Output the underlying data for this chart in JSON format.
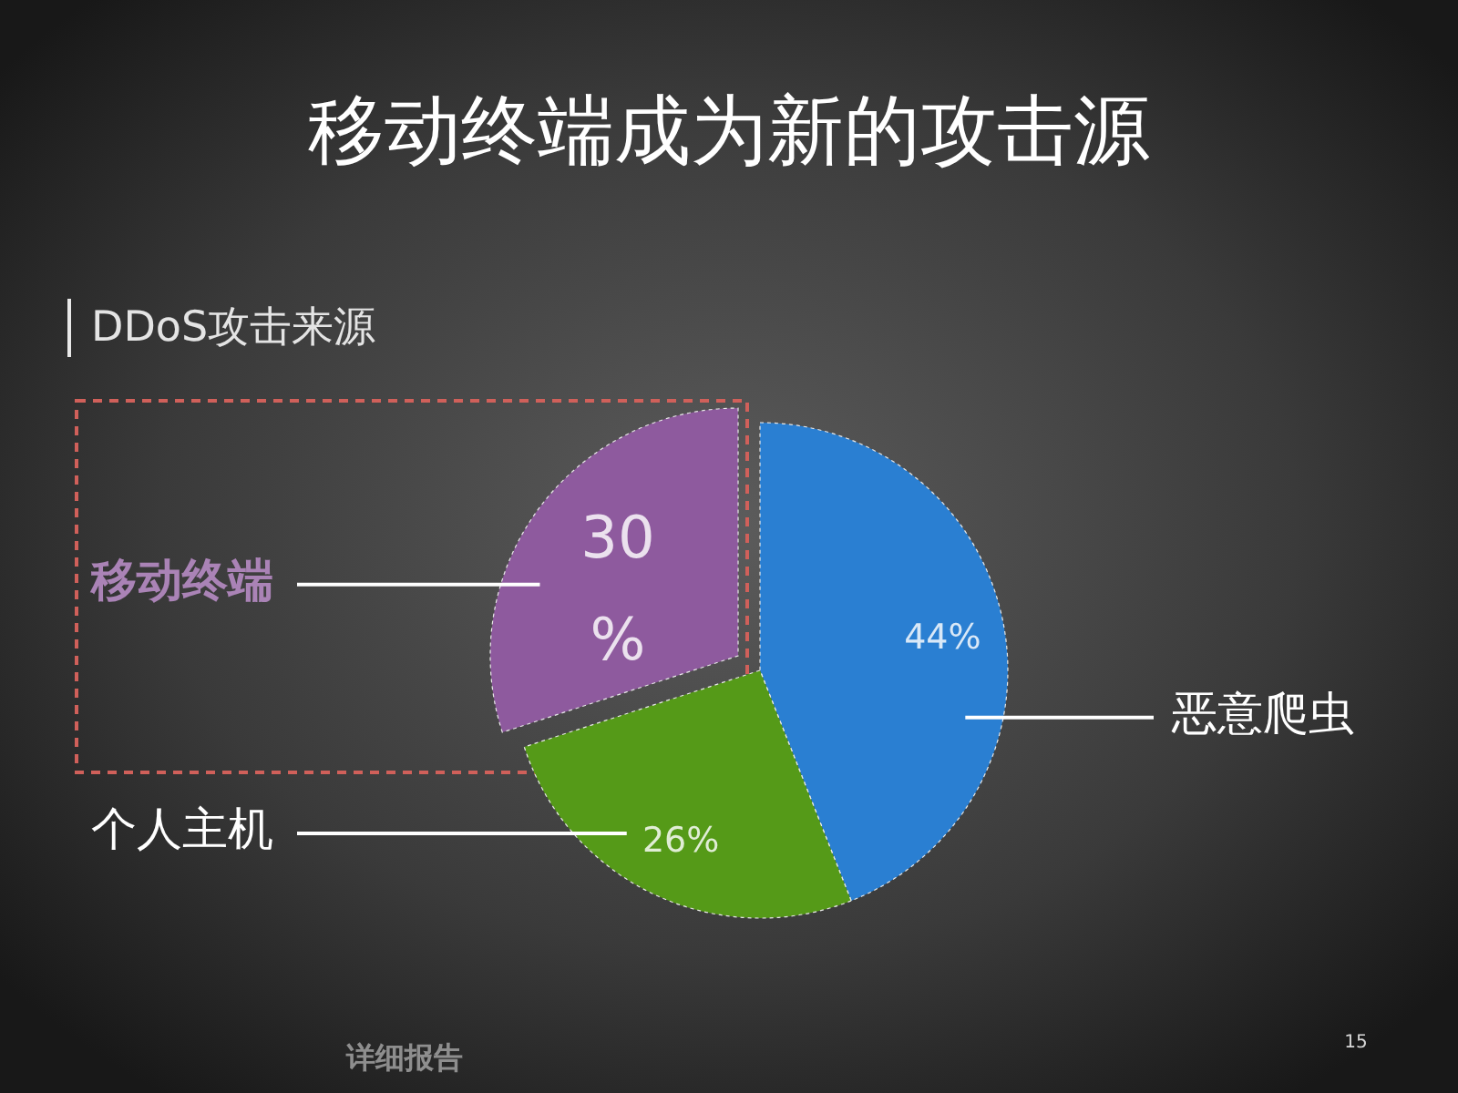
{
  "chart_data": {
    "type": "pie",
    "title": "移动终端成为新的攻击源",
    "subtitle": "DDoS攻击来源",
    "categories": [
      "恶意爬虫",
      "个人主机",
      "移动终端"
    ],
    "values": [
      44,
      26,
      30
    ],
    "colors": [
      "#2a7fd2",
      "#559a18",
      "#8e5a9e"
    ],
    "value_labels": [
      "44%",
      "26%",
      "30%"
    ],
    "annotations": [
      "详细报告",
      "15"
    ]
  }
}
